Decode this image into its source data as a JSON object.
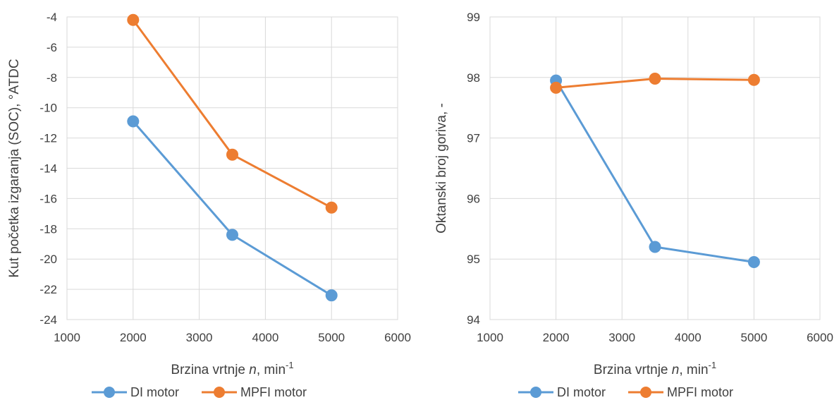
{
  "chart_data": [
    {
      "type": "line",
      "title": "",
      "xlabel": {
        "prefix": "Brzina vrtnje ",
        "var": "n",
        "unit": ", min",
        "sup": "-1"
      },
      "ylabel": "Kut početka izgaranja (SOC),  °ATDC",
      "xlim": [
        1000,
        6000
      ],
      "ylim": [
        -24,
        -4
      ],
      "xticks": [
        1000,
        2000,
        3000,
        4000,
        5000,
        6000
      ],
      "yticks": [
        -24,
        -22,
        -20,
        -18,
        -16,
        -14,
        -12,
        -10,
        -8,
        -6,
        -4
      ],
      "grid": true,
      "legend_position": "bottom",
      "series": [
        {
          "name": "DI motor",
          "color": "#5B9BD5",
          "x": [
            2000,
            3500,
            5000
          ],
          "y": [
            -10.9,
            -18.4,
            -22.4
          ]
        },
        {
          "name": "MPFI motor",
          "color": "#ED7D31",
          "x": [
            2000,
            3500,
            5000
          ],
          "y": [
            -4.2,
            -13.1,
            -16.6
          ]
        }
      ]
    },
    {
      "type": "line",
      "title": "",
      "xlabel": {
        "prefix": "Brzina vrtnje ",
        "var": "n",
        "unit": ", min",
        "sup": "-1"
      },
      "ylabel": "Oktanski broj goriva, -",
      "xlim": [
        1000,
        6000
      ],
      "ylim": [
        94,
        99
      ],
      "xticks": [
        1000,
        2000,
        3000,
        4000,
        5000,
        6000
      ],
      "yticks": [
        94,
        95,
        96,
        97,
        98,
        99
      ],
      "grid": true,
      "legend_position": "bottom",
      "series": [
        {
          "name": "DI motor",
          "color": "#5B9BD5",
          "x": [
            2000,
            3500,
            5000
          ],
          "y": [
            97.95,
            95.2,
            94.95
          ]
        },
        {
          "name": "MPFI motor",
          "color": "#ED7D31",
          "x": [
            2000,
            3500,
            5000
          ],
          "y": [
            97.83,
            97.98,
            97.96
          ]
        }
      ]
    }
  ]
}
